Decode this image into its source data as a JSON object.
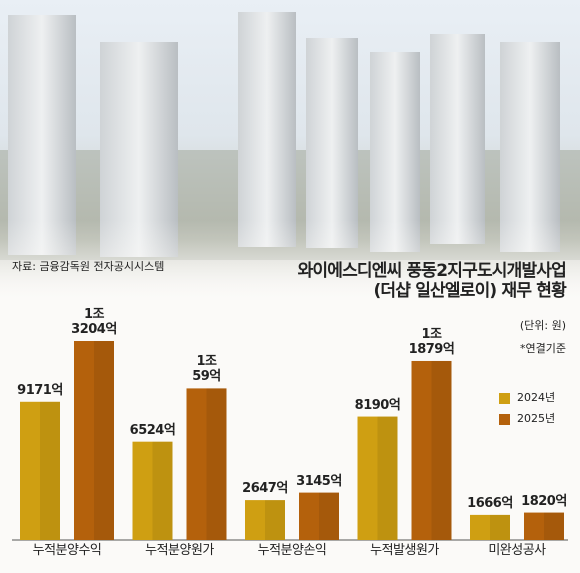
{
  "chart_data": {
    "type": "bar",
    "title": "와이에스디엔씨 풍동2지구도시개발사업\n(더샵 일산엘로이) 재무 현황",
    "source": "자료: 금융감독원 전자공시시스템",
    "unit": "(단위: 원)",
    "note": "*연결기준",
    "categories": [
      "누적분양수익",
      "누적분양원가",
      "누적분양손익",
      "누적발생원가",
      "미완성공사"
    ],
    "series": [
      {
        "name": "2024년",
        "color": "#cf9f12",
        "values": [
          9171,
          6524,
          2647,
          8190,
          1666
        ],
        "value_labels": [
          "9171억",
          "6524억",
          "2647억",
          "8190억",
          "1666억"
        ]
      },
      {
        "name": "2025년",
        "color": "#b4610c",
        "values": [
          13204,
          10059,
          3145,
          11879,
          1820
        ],
        "value_labels": [
          "1조\n3204억",
          "1조\n59억",
          "3145억",
          "1조\n1879억",
          "1820억"
        ]
      }
    ]
  }
}
